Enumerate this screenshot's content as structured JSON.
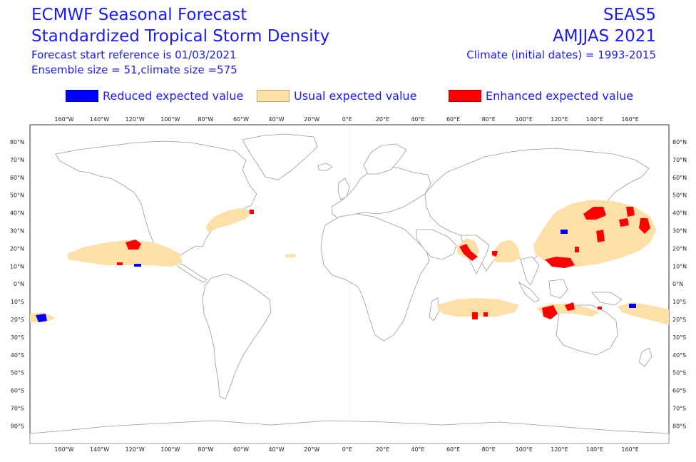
{
  "header": {
    "title_line1": "ECMWF Seasonal Forecast",
    "title_line2": "Standardized Tropical Storm Density",
    "forecast_start": "Forecast start reference is 01/03/2021",
    "ensemble": "Ensemble size = 51,climate size =575",
    "system": "SEAS5",
    "season": "AMJJAS 2021",
    "climate": "Climate (initial dates) = 1993-2015"
  },
  "legend": [
    {
      "label": "Reduced expected value",
      "color": "#0000ff"
    },
    {
      "label": "Usual expected value",
      "color": "#fde0a8"
    },
    {
      "label": "Enhanced expected value",
      "color": "#ff0000"
    }
  ],
  "map": {
    "lon_labels": [
      "160°W",
      "140°W",
      "120°W",
      "100°W",
      "80°W",
      "60°W",
      "40°W",
      "20°W",
      "0°E",
      "20°E",
      "40°E",
      "60°E",
      "80°E",
      "100°E",
      "120°E",
      "140°E",
      "160°E"
    ],
    "lat_labels": [
      "80°N",
      "70°N",
      "60°N",
      "50°N",
      "40°N",
      "30°N",
      "20°N",
      "10°N",
      "0°N",
      "10°S",
      "20°S",
      "30°S",
      "40°S",
      "50°S",
      "60°S",
      "70°S",
      "80°S"
    ],
    "land_color": "#ffffff",
    "coast_color": "#9a9a9a",
    "usual_color": "#fde0a8",
    "reduced_color": "#0000ff",
    "enhanced_color": "#ff0000"
  }
}
